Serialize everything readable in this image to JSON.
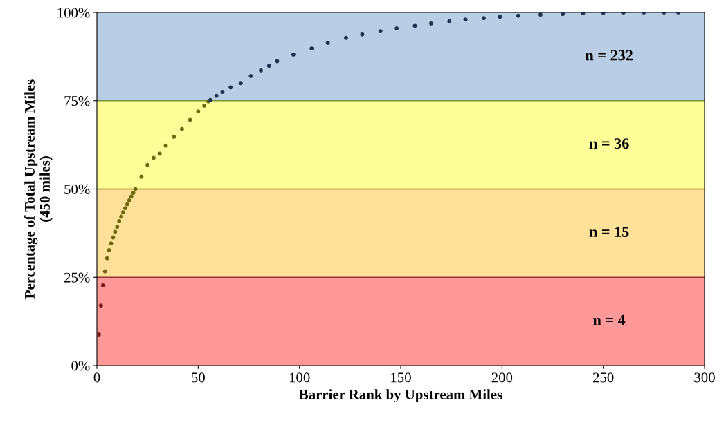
{
  "chart_data": {
    "type": "scatter",
    "xlabel": "Barrier Rank by Upstream Miles",
    "ylabel": "Percentage of Total Upstream Miles\n(450 miles)",
    "xlim": [
      0,
      300
    ],
    "xticks": [
      0,
      50,
      100,
      150,
      200,
      250,
      300
    ],
    "ylim": [
      0,
      100
    ],
    "yticks": [
      {
        "value": 0,
        "label": "0%"
      },
      {
        "value": 25,
        "label": "25%"
      },
      {
        "value": 50,
        "label": "50%"
      },
      {
        "value": 75,
        "label": "75%"
      },
      {
        "value": 100,
        "label": "100%"
      }
    ],
    "marker": "circle",
    "grid": false,
    "bands": [
      {
        "axis": "y",
        "from": 0,
        "to": 25,
        "color": "#ff9999"
      },
      {
        "axis": "y",
        "from": 25,
        "to": 50,
        "color": "#ffe099"
      },
      {
        "axis": "y",
        "from": 50,
        "to": 75,
        "color": "#ffff99"
      },
      {
        "axis": "y",
        "from": 75,
        "to": 100,
        "color": "#b9cde5"
      }
    ],
    "ref_lines": [
      {
        "axis": "y",
        "value": 25,
        "color": "#953735"
      },
      {
        "axis": "y",
        "value": 50,
        "color": "#7f6000"
      },
      {
        "axis": "y",
        "value": 75,
        "color": "#77933c"
      }
    ],
    "series": [
      {
        "color": "#7b1a1a",
        "x": [
          1,
          2,
          3
        ],
        "values": [
          8.8,
          17,
          22.7
        ]
      },
      {
        "color": "#6b6a10",
        "x": [
          4,
          5,
          6,
          7,
          8,
          9,
          10,
          11,
          12,
          13,
          14,
          15,
          16,
          17,
          18,
          19,
          22,
          25,
          28,
          31,
          34,
          38,
          42,
          46,
          50,
          53,
          55
        ],
        "values": [
          26.7,
          30.4,
          32.7,
          34.6,
          36.3,
          37.9,
          39.3,
          40.9,
          42.2,
          43.4,
          44.6,
          45.7,
          46.8,
          47.9,
          48.9,
          50,
          53.5,
          56.8,
          58.8,
          60,
          62.3,
          64.8,
          67,
          69.6,
          72,
          73.6,
          74.8
        ]
      },
      {
        "color": "#1f3350",
        "x": [
          56,
          59,
          62,
          66,
          71,
          76,
          81,
          85,
          89,
          97,
          106,
          114,
          123,
          131,
          140,
          148,
          157,
          165,
          174,
          182,
          191,
          199,
          208,
          219,
          230,
          240,
          250,
          260,
          270,
          280,
          287
        ],
        "values": [
          75.2,
          76.4,
          77.5,
          78.8,
          80,
          82,
          83.6,
          84.9,
          86.2,
          88.1,
          89.8,
          91.4,
          92.8,
          93.8,
          94.7,
          95.5,
          96.2,
          96.9,
          97.5,
          98,
          98.4,
          98.8,
          99.1,
          99.4,
          99.6,
          99.8,
          99.9,
          100,
          100,
          100,
          100
        ]
      }
    ],
    "annotations": [
      "n = 232",
      "n = 36",
      "n = 15",
      "n = 4"
    ]
  }
}
